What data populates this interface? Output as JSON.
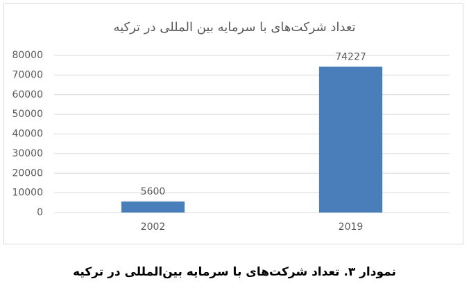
{
  "chart_data": {
    "type": "bar",
    "title": "تعداد شرکت‌های با سرمایه بین المللی در ترکیه",
    "categories": [
      "2002",
      "2019"
    ],
    "values": [
      5600,
      74227
    ],
    "color": "#4a7ebb",
    "ylim": [
      0,
      80000
    ],
    "yticks": [
      0,
      10000,
      20000,
      30000,
      40000,
      50000,
      60000,
      70000,
      80000
    ],
    "grid": true
  },
  "caption": "نمودار ۳. تعداد شرکت‌های با سرمایه بین‌المللی در ترکیه"
}
